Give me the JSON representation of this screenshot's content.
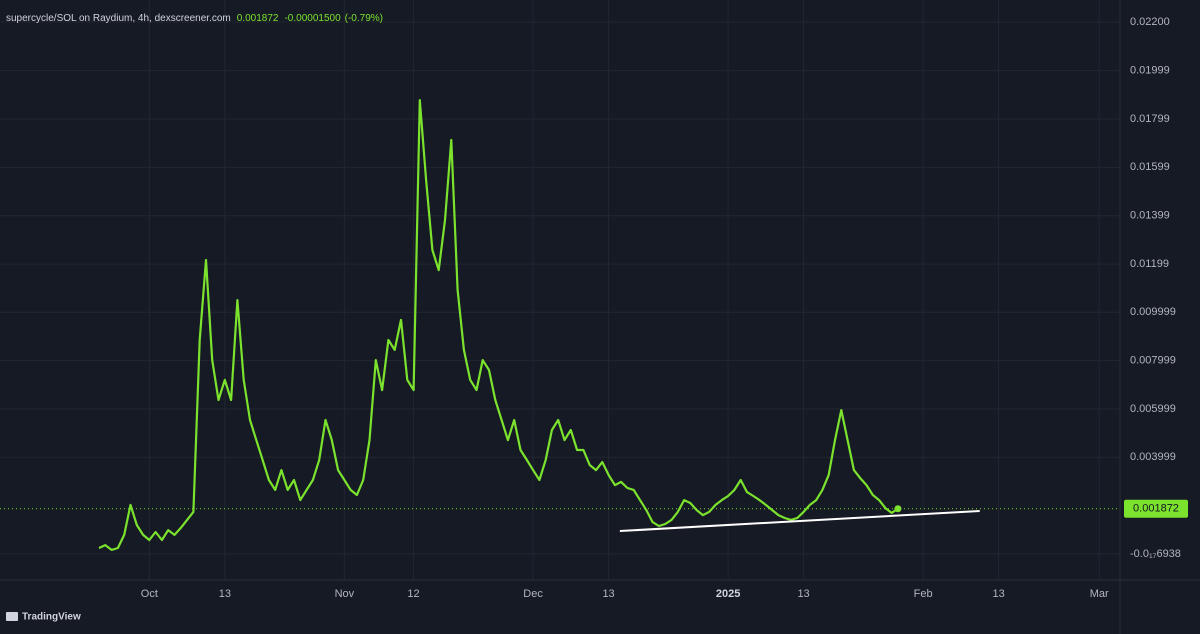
{
  "chart_data": {
    "type": "line",
    "title": "supercycle/SOL on Raydium, 4h, dexscreener.com",
    "last_price": 0.001872,
    "change": "-0.00001500",
    "change_percent": "(-0.79%)",
    "watermark": "TradingView",
    "color": "#7be22d",
    "values": [
      0.00025,
      0.00037,
      0.00017,
      0.00025,
      0.00079,
      0.00203,
      0.0012,
      0.00079,
      0.00058,
      0.00091,
      0.00058,
      0.00099,
      0.00079,
      0.00108,
      0.00141,
      0.00174,
      0.00885,
      0.01216,
      0.00802,
      0.00637,
      0.0072,
      0.00637,
      0.0105,
      0.0072,
      0.00554,
      0.00471,
      0.00389,
      0.00306,
      0.00265,
      0.00347,
      0.00265,
      0.00306,
      0.00223,
      0.00265,
      0.00306,
      0.00389,
      0.00554,
      0.00471,
      0.00347,
      0.00306,
      0.00265,
      0.00244,
      0.00306,
      0.00471,
      0.00802,
      0.00678,
      0.00885,
      0.00844,
      0.00968,
      0.0072,
      0.00678,
      0.01877,
      0.01547,
      0.01257,
      0.01174,
      0.01381,
      0.01712,
      0.01092,
      0.00844,
      0.0072,
      0.00678,
      0.00802,
      0.00761,
      0.00637,
      0.00554,
      0.00471,
      0.00554,
      0.0043,
      0.00389,
      0.00347,
      0.00306,
      0.00389,
      0.00513,
      0.00554,
      0.00471,
      0.00513,
      0.0043,
      0.0043,
      0.00368,
      0.00347,
      0.0038,
      0.00327,
      0.00285,
      0.00298,
      0.00273,
      0.00265,
      0.00223,
      0.00182,
      0.00132,
      0.00116,
      0.00124,
      0.00141,
      0.00174,
      0.00223,
      0.00211,
      0.00182,
      0.00161,
      0.00174,
      0.00203,
      0.00223,
      0.0024,
      0.00265,
      0.00306,
      0.00256,
      0.0024,
      0.00223,
      0.00203,
      0.00182,
      0.00161,
      0.00149,
      0.00141,
      0.00149,
      0.00174,
      0.00203,
      0.00223,
      0.00265,
      0.00327,
      0.00471,
      0.00595,
      0.00471,
      0.00347,
      0.00314,
      0.00285,
      0.00244,
      0.00223,
      0.0019,
      0.0017,
      0.001872
    ],
    "trendline": {
      "x": [
        82.8,
        140
      ],
      "values": [
        0.00095,
        0.00178
      ],
      "color": "#ffffff"
    },
    "xlim": [
      -15.74,
      162.3
    ],
    "xticks": [
      {
        "value": 8,
        "label": "Oct"
      },
      {
        "value": 20,
        "label": "13"
      },
      {
        "value": 39,
        "label": "Nov"
      },
      {
        "value": 50,
        "label": "12"
      },
      {
        "value": 69,
        "label": "Dec"
      },
      {
        "value": 81,
        "label": "13"
      },
      {
        "value": 100,
        "label": "2025"
      },
      {
        "value": 112,
        "label": "13"
      },
      {
        "value": 131,
        "label": "Feb"
      },
      {
        "value": 143,
        "label": "13"
      },
      {
        "value": 159,
        "label": "Mar"
      }
    ],
    "ylim": [
      -0.001075,
      0.02291
    ],
    "yticks": [
      {
        "value": -6.938e-18,
        "label": "-0.0₁₇6938"
      },
      0.003999,
      0.005999,
      0.007999,
      0.009999,
      0.01199,
      0.01399,
      0.01599,
      0.01799,
      0.01999,
      {
        "value": 0.022,
        "label": "0.02200"
      }
    ],
    "grid": true
  }
}
